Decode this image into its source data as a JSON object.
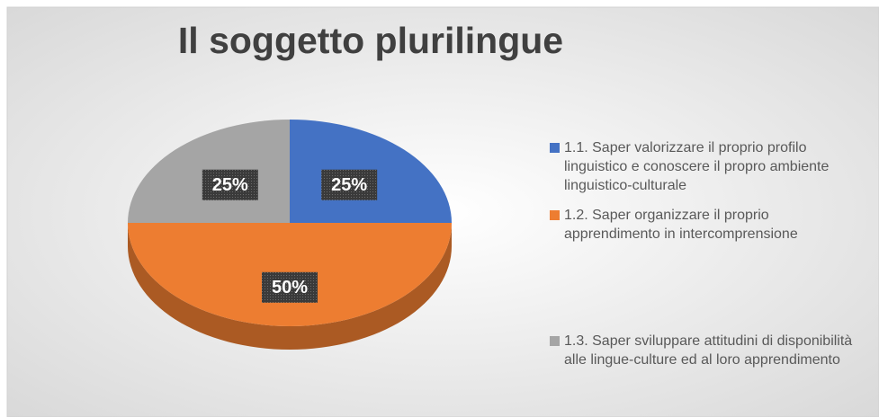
{
  "chart_data": {
    "type": "pie",
    "title": "Il soggetto plurilingue",
    "categories": [
      "1.1. Saper valorizzare il proprio profilo linguistico e conoscere il propro ambiente linguistico-culturale",
      "1.2. Saper organizzare il proprio apprendimento in intercomprensione",
      "1.3. Saper sviluppare attitudini di disponibilità alle lingue-culture ed al loro apprendimento"
    ],
    "values": [
      25,
      50,
      25
    ],
    "value_labels": [
      "25%",
      "50%",
      "25%"
    ],
    "colors": [
      "#4472c4",
      "#ed7d31",
      "#a5a5a5"
    ],
    "legend": "right"
  }
}
